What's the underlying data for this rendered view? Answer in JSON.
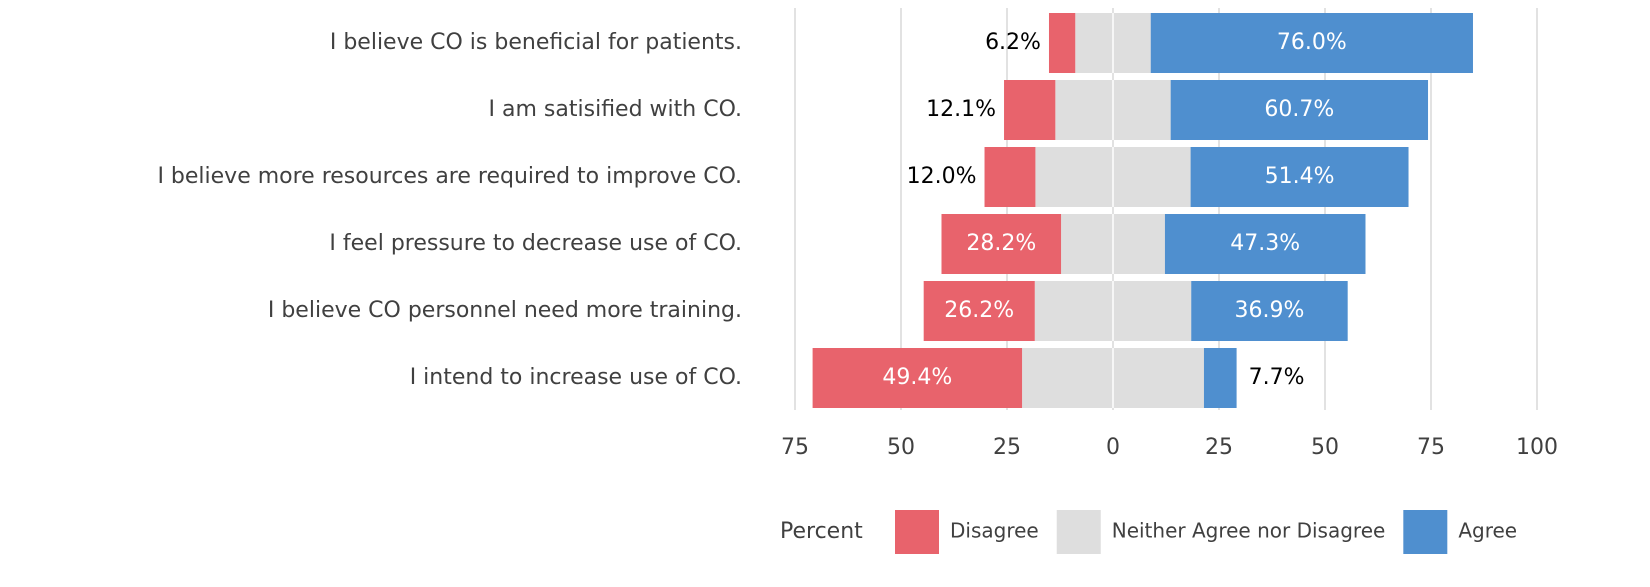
{
  "chart_data": {
    "type": "diverging-bar",
    "categories": [
      "I believe CO is beneficial for patients.",
      "I am satisified with CO.",
      "I believe more resources are required to improve CO.",
      "I feel pressure to decrease use of CO.",
      "I believe CO personnel need more training.",
      "I intend to increase use of CO."
    ],
    "series": [
      {
        "name": "Disagree",
        "color": "#e8636c",
        "values": [
          6.2,
          12.1,
          12.0,
          28.2,
          26.2,
          49.4
        ],
        "value_labels": [
          "6.2%",
          "12.1%",
          "12.0%",
          "28.2%",
          "26.2%",
          "49.4%"
        ]
      },
      {
        "name": "Neither Agree nor Disagree",
        "color": "#dedede",
        "values": [
          17.8,
          27.2,
          36.6,
          24.5,
          36.9,
          42.9
        ]
      },
      {
        "name": "Agree",
        "color": "#4f8fcf",
        "values": [
          76.0,
          60.7,
          51.4,
          47.3,
          36.9,
          7.7
        ],
        "value_labels": [
          "76.0%",
          "60.7%",
          "51.4%",
          "47.3%",
          "36.9%",
          "7.7%"
        ]
      }
    ],
    "xlim": [
      -75,
      100
    ],
    "xticks": [
      {
        "value": -75,
        "label": "75"
      },
      {
        "value": -50,
        "label": "50"
      },
      {
        "value": -25,
        "label": "25"
      },
      0,
      25,
      50,
      75,
      100
    ],
    "legend_title": "Percent",
    "legend": "bottom",
    "grid": true
  }
}
